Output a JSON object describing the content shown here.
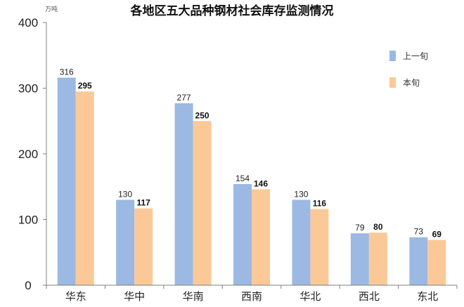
{
  "chart_data": {
    "type": "bar",
    "title": "各地区五大品种钢材社会库存监测情况",
    "unit": "万吨",
    "categories": [
      "华东",
      "华中",
      "华南",
      "西南",
      "华北",
      "西北",
      "东北"
    ],
    "series": [
      {
        "name": "上一旬",
        "values": [
          316,
          130,
          277,
          154,
          130,
          79,
          73
        ],
        "color": "#9bb9e3"
      },
      {
        "name": "本旬",
        "values": [
          295,
          117,
          250,
          146,
          116,
          80,
          69
        ],
        "color": "#fbc998"
      }
    ],
    "ylim": [
      0,
      400
    ],
    "yticks": [
      0,
      100,
      200,
      300,
      400
    ],
    "grid": false,
    "legend": "right"
  }
}
